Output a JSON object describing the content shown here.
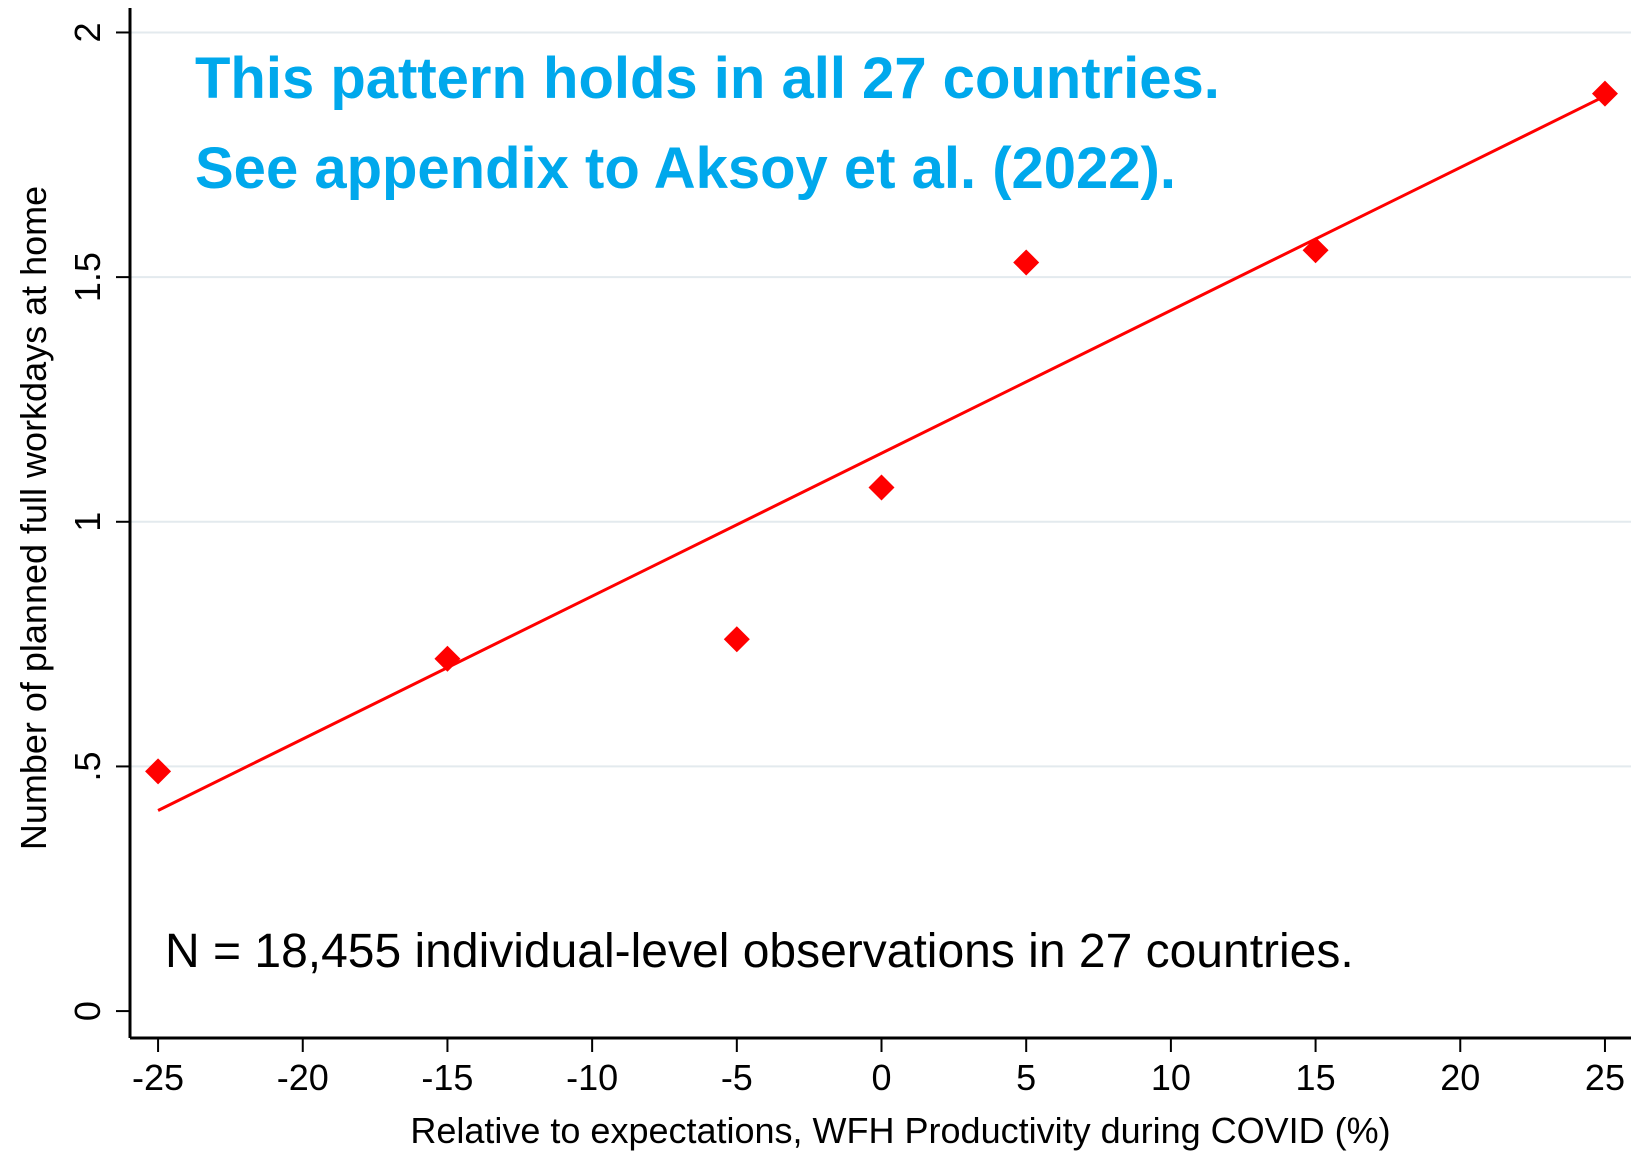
{
  "chart_data": {
    "type": "scatter",
    "x_label": "Relative to expectations, WFH Productivity during COVID (%)",
    "y_label": "Number of planned full workdays at home",
    "annotations": [
      "This pattern holds in all 27 countries.",
      "See appendix to Aksoy et al. (2022).",
      "N = 18,455 individual-level observations in 27 countries."
    ],
    "points": {
      "x": [
        -25,
        -15,
        -5,
        0,
        5,
        15,
        25
      ],
      "values": [
        0.49,
        0.72,
        0.76,
        1.07,
        1.53,
        1.555,
        1.875
      ],
      "color": "#ff0000"
    },
    "fit": {
      "x": [
        -25,
        25
      ],
      "values": [
        0.41,
        1.87
      ],
      "color": "#ff0000"
    },
    "xlim": [
      -25.97,
      25.9
    ],
    "ylim": [
      -0.055,
      2.05
    ],
    "xticks": [
      -25,
      -20,
      -15,
      -10,
      -5,
      0,
      5,
      10,
      15,
      20,
      25
    ],
    "yticks": [
      0,
      {
        "value": 0.5,
        "label": ".5"
      },
      1,
      1.5,
      2
    ],
    "grid": true
  }
}
